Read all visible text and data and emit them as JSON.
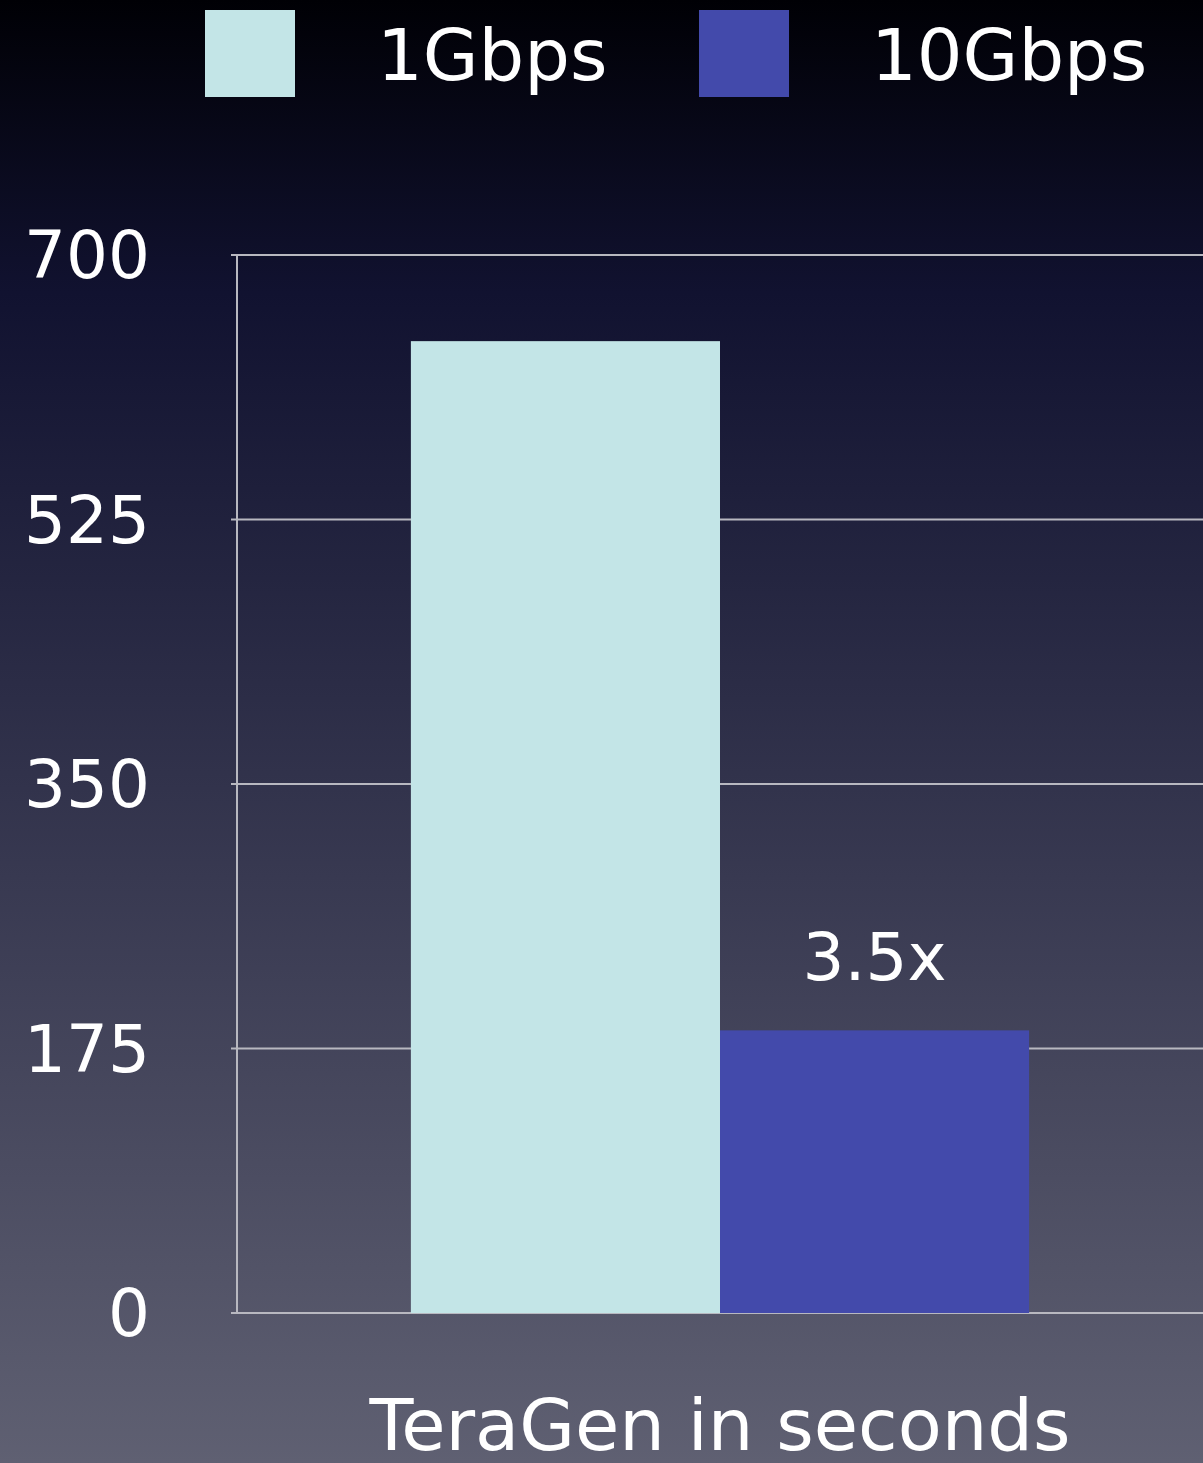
{
  "chart_data": {
    "type": "bar",
    "categories": [
      "TeraGen in seconds"
    ],
    "series": [
      {
        "name": "1Gbps",
        "color": "#c3e5e7",
        "values": [
          643
        ]
      },
      {
        "name": "10Gbps",
        "color": "#434aab",
        "values": [
          187
        ]
      }
    ],
    "ylim": [
      0,
      700
    ],
    "yticks": [
      0,
      175,
      350,
      525,
      700
    ],
    "grid": "y",
    "legend": "top",
    "annotations": [
      "3.5x"
    ]
  }
}
